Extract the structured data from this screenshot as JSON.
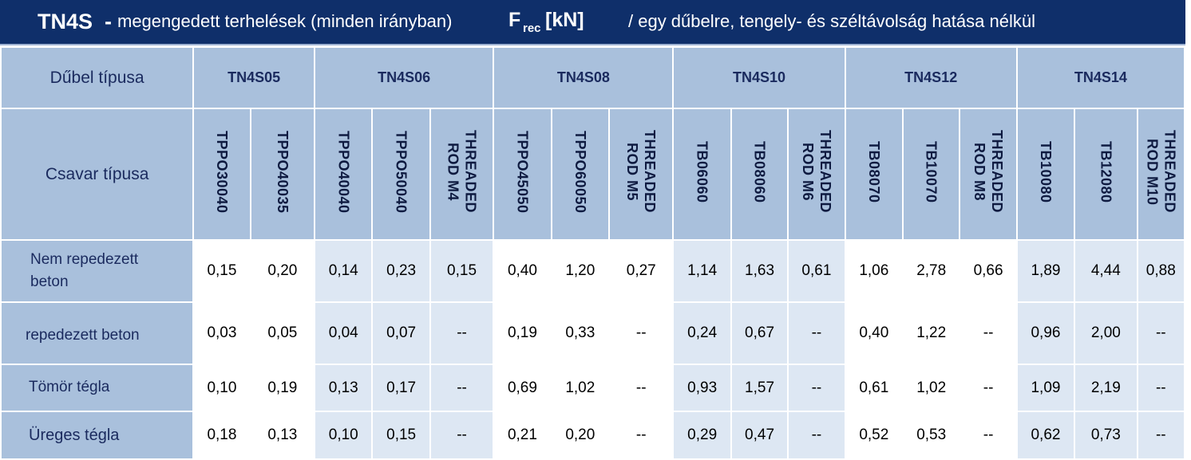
{
  "title": {
    "main": "TN4S",
    "dash": "-",
    "description": "megengedett terhelések (minden irányban)",
    "f_symbol": "F",
    "f_subscript": "rec",
    "unit": "[kN]",
    "note": "/ egy dűbelre, tengely- és széltávolság hatása nélkül"
  },
  "labels": {
    "dowel_type": "Dűbel típusa",
    "screw_type": "Csavar típusa"
  },
  "dowel_types": [
    "TN4S05",
    "TN4S06",
    "TN4S08",
    "TN4S10",
    "TN4S12",
    "TN4S14"
  ],
  "screws": [
    {
      "line1": "TPPO30040",
      "line2": ""
    },
    {
      "line1": "TPPO40035",
      "line2": ""
    },
    {
      "line1": "TPPO40040",
      "line2": ""
    },
    {
      "line1": "TPPO50040",
      "line2": ""
    },
    {
      "line1": "THREADED",
      "line2": "ROD M4"
    },
    {
      "line1": "TPPO45050",
      "line2": ""
    },
    {
      "line1": "TPPO60050",
      "line2": ""
    },
    {
      "line1": "THREADED",
      "line2": "ROD M5"
    },
    {
      "line1": "TB06060",
      "line2": ""
    },
    {
      "line1": "TB08060",
      "line2": ""
    },
    {
      "line1": "THREADED",
      "line2": "ROD M6"
    },
    {
      "line1": "TB08070",
      "line2": ""
    },
    {
      "line1": "TB10070",
      "line2": ""
    },
    {
      "line1": "THREADED",
      "line2": "ROD M8"
    },
    {
      "line1": "TB10080",
      "line2": ""
    },
    {
      "line1": "TB12080",
      "line2": ""
    },
    {
      "line1": "THREADED",
      "line2": "ROD M10"
    }
  ],
  "rows": [
    {
      "label_line1": "Nem repedezett",
      "label_line2": "beton",
      "values": [
        "0,15",
        "0,20",
        "0,14",
        "0,23",
        "0,15",
        "0,40",
        "1,20",
        "0,27",
        "1,14",
        "1,63",
        "0,61",
        "1,06",
        "2,78",
        "0,66",
        "1,89",
        "4,44",
        "0,88"
      ]
    },
    {
      "label_line1": "repedezett  beton",
      "label_line2": "",
      "values": [
        "0,03",
        "0,05",
        "0,04",
        "0,07",
        "--",
        "0,19",
        "0,33",
        "--",
        "0,24",
        "0,67",
        "--",
        "0,40",
        "1,22",
        "--",
        "0,96",
        "2,00",
        "--"
      ]
    },
    {
      "label_line1": "Tömör tégla",
      "label_line2": "",
      "values": [
        "0,10",
        "0,19",
        "0,13",
        "0,17",
        "--",
        "0,69",
        "1,02",
        "--",
        "0,93",
        "1,57",
        "--",
        "0,61",
        "1,02",
        "--",
        "1,09",
        "2,19",
        "--"
      ]
    },
    {
      "label_line1": "Üreges tégla",
      "label_line2": "",
      "values": [
        "0,18",
        "0,13",
        "0,10",
        "0,15",
        "--",
        "0,21",
        "0,20",
        "--",
        "0,29",
        "0,47",
        "--",
        "0,52",
        "0,53",
        "--",
        "0,62",
        "0,73",
        "--"
      ]
    }
  ]
}
